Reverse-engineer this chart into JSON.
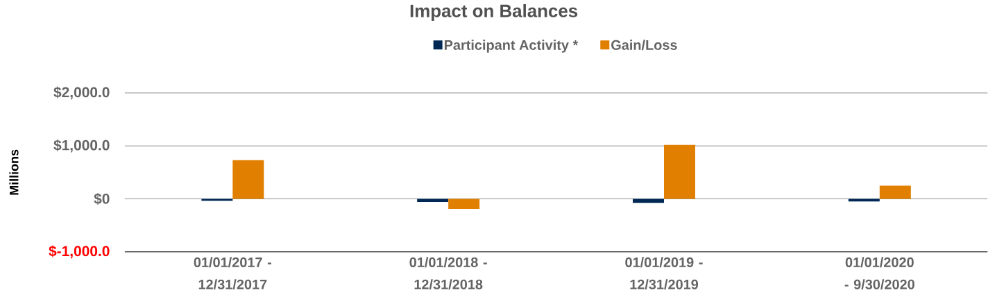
{
  "chart_data": {
    "type": "bar",
    "title": "Impact on Balances",
    "ylabel": "Millions",
    "categories": [
      "01/01/2017 - 12/31/2017",
      "01/01/2018 - 12/31/2018",
      "01/01/2019 - 12/31/2019",
      "01/01/2020 - 9/30/2020"
    ],
    "series": [
      {
        "name": "Participant Activity *",
        "color": "#002855",
        "values": [
          -35,
          -60,
          -75,
          -50
        ]
      },
      {
        "name": "Gain/Loss",
        "color": "#e07f00",
        "values": [
          730,
          -190,
          1020,
          250
        ]
      }
    ],
    "ylim": [
      -1000,
      2000
    ],
    "yticks": [
      {
        "value": -1000,
        "label": "$-1,000.0"
      },
      {
        "value": 0,
        "label": "$0"
      },
      {
        "value": 1000,
        "label": "$1,000.0"
      },
      {
        "value": 2000,
        "label": "$2,000.0"
      }
    ],
    "grid": "y",
    "legend": "top"
  }
}
